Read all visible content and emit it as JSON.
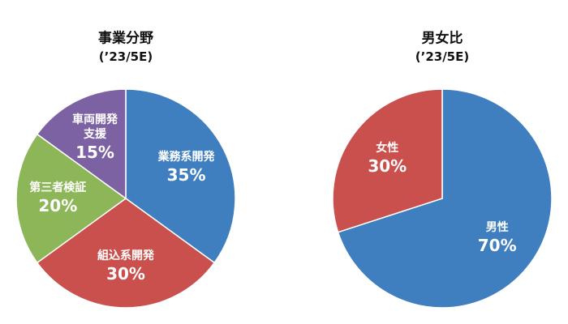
{
  "chart_data": [
    {
      "type": "pie",
      "title": "事業分野",
      "subtitle": "(’23/5E)",
      "categories": [
        "業務系開発",
        "組込系開発",
        "第三者検証",
        "車両開発\n支援"
      ],
      "values": [
        35,
        30,
        20,
        15
      ],
      "value_labels": [
        "35%",
        "30%",
        "20%",
        "15%"
      ],
      "colors": [
        "#3f7fbf",
        "#c9504c",
        "#8db658",
        "#7d62a3"
      ]
    },
    {
      "type": "pie",
      "title": "男女比",
      "subtitle": "(’23/5E)",
      "categories": [
        "男性",
        "女性"
      ],
      "values": [
        70,
        30
      ],
      "value_labels": [
        "70%",
        "30%"
      ],
      "colors": [
        "#3f7fbf",
        "#c9504c"
      ]
    }
  ]
}
